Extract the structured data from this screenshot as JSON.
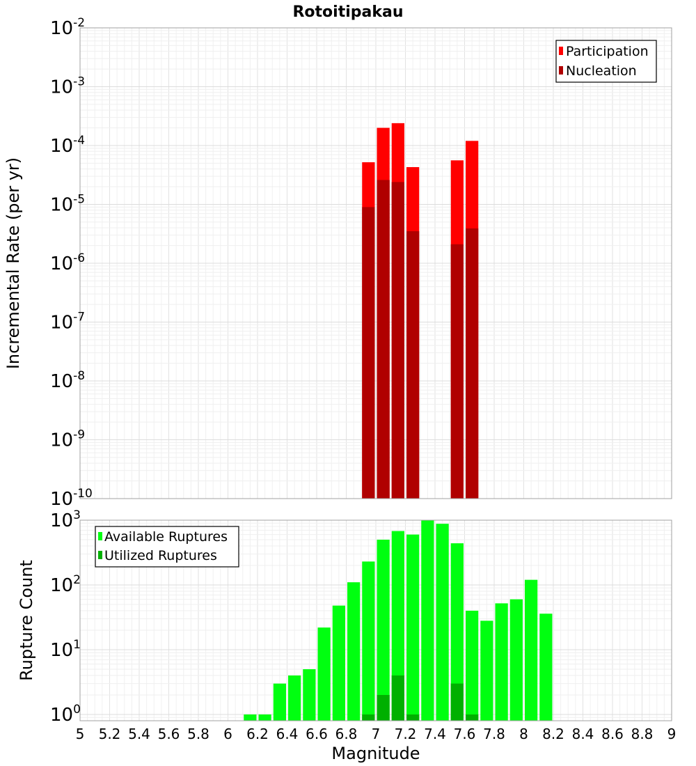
{
  "chart": {
    "title": "Rotoitipakau",
    "xlabel": "Magnitude"
  },
  "chart_data": [
    {
      "type": "bar",
      "ylabel": "Incremental Rate (per yr)",
      "yscale": "log",
      "ylim": [
        1e-10,
        0.01
      ],
      "xlim": [
        5,
        9
      ],
      "y_tick_labels": [
        {
          "base": "10",
          "exp": "-10",
          "value": 1e-10
        },
        {
          "base": "10",
          "exp": "-9",
          "value": 1e-09
        },
        {
          "base": "10",
          "exp": "-8",
          "value": 1e-08
        },
        {
          "base": "10",
          "exp": "-7",
          "value": 1e-07
        },
        {
          "base": "10",
          "exp": "-6",
          "value": 1e-06
        },
        {
          "base": "10",
          "exp": "-5",
          "value": 1e-05
        },
        {
          "base": "10",
          "exp": "-4",
          "value": 0.0001
        },
        {
          "base": "10",
          "exp": "-3",
          "value": 0.001
        },
        {
          "base": "10",
          "exp": "-2",
          "value": 0.01
        }
      ],
      "legend_position": "top-right",
      "series": [
        {
          "name": "Participation",
          "color": "#ff0000",
          "x": [
            6.95,
            7.05,
            7.15,
            7.25,
            7.55,
            7.65
          ],
          "values": [
            5.2e-05,
            0.0002,
            0.00024,
            4.3e-05,
            5.6e-05,
            0.00012
          ]
        },
        {
          "name": "Nucleation",
          "color": "#b00000",
          "x": [
            6.95,
            7.05,
            7.15,
            7.25,
            7.55,
            7.65
          ],
          "values": [
            9e-06,
            2.6e-05,
            2.4e-05,
            3.5e-06,
            2.1e-06,
            3.9e-06
          ]
        }
      ]
    },
    {
      "type": "bar",
      "ylabel": "Rupture Count",
      "yscale": "log",
      "ylim": [
        0.8,
        1000
      ],
      "xlim": [
        5,
        9
      ],
      "y_tick_labels": [
        {
          "base": "10",
          "exp": "0",
          "value": 1
        },
        {
          "base": "10",
          "exp": "1",
          "value": 10
        },
        {
          "base": "10",
          "exp": "2",
          "value": 100
        },
        {
          "base": "10",
          "exp": "3",
          "value": 1000
        }
      ],
      "x_tick_labels": [
        "5",
        "5.2",
        "5.4",
        "5.6",
        "5.8",
        "6",
        "6.2",
        "6.4",
        "6.6",
        "6.8",
        "7",
        "7.2",
        "7.4",
        "7.6",
        "7.8",
        "8",
        "8.2",
        "8.4",
        "8.6",
        "8.8",
        "9"
      ],
      "legend_position": "top-left",
      "series": [
        {
          "name": "Available Ruptures",
          "color": "#00ff10",
          "x": [
            6.15,
            6.25,
            6.35,
            6.45,
            6.55,
            6.65,
            6.75,
            6.85,
            6.95,
            7.05,
            7.15,
            7.25,
            7.35,
            7.45,
            7.55,
            7.65,
            7.75,
            7.85,
            7.95,
            8.05,
            8.15
          ],
          "values": [
            1,
            1,
            3,
            4,
            5,
            22,
            48,
            110,
            230,
            500,
            680,
            600,
            1000,
            880,
            440,
            40,
            28,
            52,
            60,
            120,
            36
          ]
        },
        {
          "name": "Utilized Ruptures",
          "color": "#00b000",
          "x": [
            6.95,
            7.05,
            7.15,
            7.25,
            7.55,
            7.65
          ],
          "values": [
            1,
            2,
            4,
            1,
            3,
            1
          ]
        }
      ]
    }
  ]
}
